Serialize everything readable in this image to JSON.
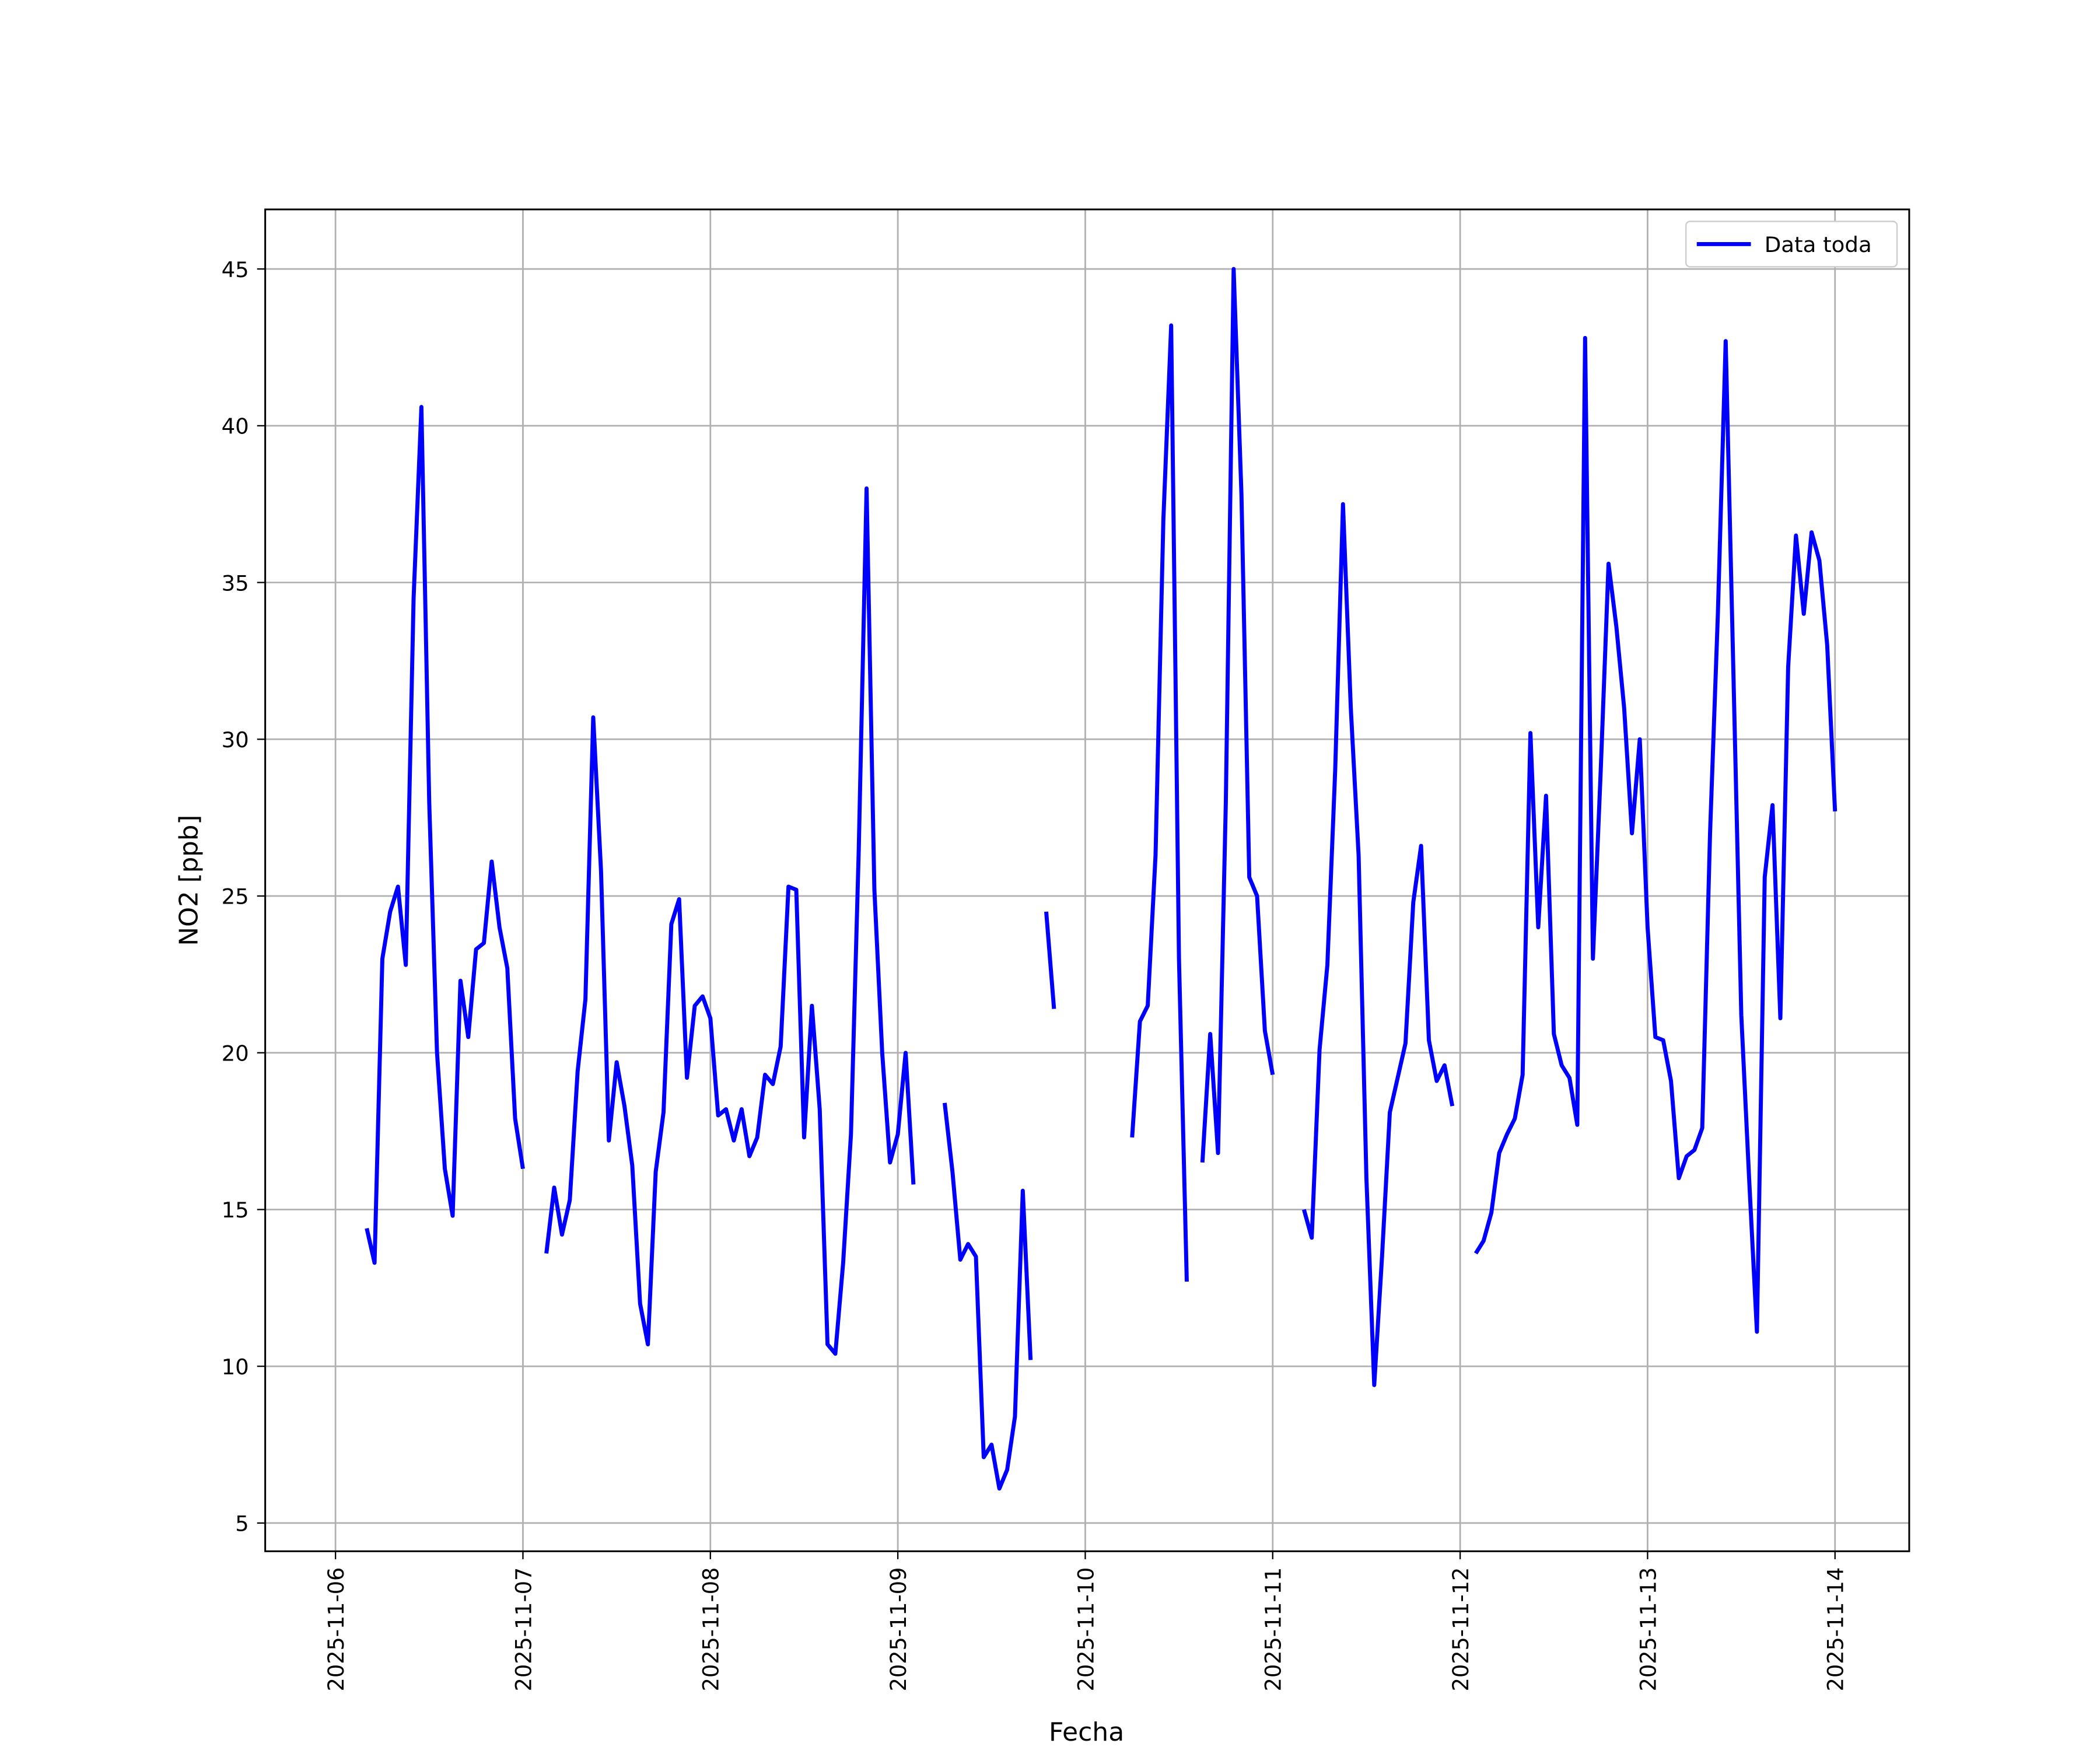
{
  "chart_data": {
    "type": "line",
    "xlabel": "Fecha",
    "ylabel": "NO2 [ppb]",
    "xlim": [
      "2025-11-05T15:00",
      "2025-11-14T09:30"
    ],
    "xticks": [
      "2025-11-06",
      "2025-11-07",
      "2025-11-08",
      "2025-11-09",
      "2025-11-10",
      "2025-11-11",
      "2025-11-12",
      "2025-11-13",
      "2025-11-14"
    ],
    "ylim": [
      4.1,
      46.9
    ],
    "yticks": [
      5,
      10,
      15,
      20,
      25,
      30,
      35,
      40,
      45
    ],
    "grid": true,
    "legend": "upper right",
    "x": [
      "2025-11-06T04:00",
      "2025-11-06T05:00",
      "2025-11-06T06:00",
      "2025-11-06T07:00",
      "2025-11-06T08:00",
      "2025-11-06T09:00",
      "2025-11-06T10:00",
      "2025-11-06T11:00",
      "2025-11-06T12:00",
      "2025-11-06T13:00",
      "2025-11-06T14:00",
      "2025-11-06T15:00",
      "2025-11-06T16:00",
      "2025-11-06T17:00",
      "2025-11-06T18:00",
      "2025-11-06T19:00",
      "2025-11-06T20:00",
      "2025-11-06T21:00",
      "2025-11-06T22:00",
      "2025-11-06T23:00",
      "2025-11-07T00:00",
      "2025-11-07T01:00",
      "2025-11-07T03:00",
      "2025-11-07T04:00",
      "2025-11-07T05:00",
      "2025-11-07T06:00",
      "2025-11-07T07:00",
      "2025-11-07T08:00",
      "2025-11-07T09:00",
      "2025-11-07T10:00",
      "2025-11-07T11:00",
      "2025-11-07T12:00",
      "2025-11-07T13:00",
      "2025-11-07T14:00",
      "2025-11-07T15:00",
      "2025-11-07T16:00",
      "2025-11-07T17:00",
      "2025-11-07T18:00",
      "2025-11-07T19:00",
      "2025-11-07T20:00",
      "2025-11-07T21:00",
      "2025-11-07T22:00",
      "2025-11-07T23:00",
      "2025-11-08T00:00",
      "2025-11-08T01:00",
      "2025-11-08T02:00",
      "2025-11-08T03:00",
      "2025-11-08T04:00",
      "2025-11-08T05:00",
      "2025-11-08T06:00",
      "2025-11-08T07:00",
      "2025-11-08T08:00",
      "2025-11-08T09:00",
      "2025-11-08T10:00",
      "2025-11-08T11:00",
      "2025-11-08T12:00",
      "2025-11-08T13:00",
      "2025-11-08T14:00",
      "2025-11-08T15:00",
      "2025-11-08T16:00",
      "2025-11-08T17:00",
      "2025-11-08T18:00",
      "2025-11-08T19:00",
      "2025-11-08T20:00",
      "2025-11-08T21:00",
      "2025-11-08T22:00",
      "2025-11-08T23:00",
      "2025-11-09T00:00",
      "2025-11-09T01:00",
      "2025-11-09T02:00",
      "2025-11-09T03:00",
      "2025-11-09T06:00",
      "2025-11-09T07:00",
      "2025-11-09T08:00",
      "2025-11-09T09:00",
      "2025-11-09T10:00",
      "2025-11-09T11:00",
      "2025-11-09T12:00",
      "2025-11-09T13:00",
      "2025-11-09T14:00",
      "2025-11-09T15:00",
      "2025-11-09T16:00",
      "2025-11-09T17:00",
      "2025-11-09T18:00",
      "2025-11-09T19:00",
      "2025-11-09T20:00",
      "2025-11-09T21:00",
      "2025-11-10T06:00",
      "2025-11-10T07:00",
      "2025-11-10T08:00",
      "2025-11-10T09:00",
      "2025-11-10T10:00",
      "2025-11-10T11:00",
      "2025-11-10T12:00",
      "2025-11-10T13:00",
      "2025-11-10T14:00",
      "2025-11-10T15:00",
      "2025-11-10T16:00",
      "2025-11-10T17:00",
      "2025-11-10T18:00",
      "2025-11-10T19:00",
      "2025-11-10T20:00",
      "2025-11-10T21:00",
      "2025-11-10T22:00",
      "2025-11-10T23:00",
      "2025-11-11T00:00",
      "2025-11-11T01:00",
      "2025-11-11T04:00",
      "2025-11-11T05:00",
      "2025-11-11T06:00",
      "2025-11-11T07:00",
      "2025-11-11T08:00",
      "2025-11-11T09:00",
      "2025-11-11T10:00",
      "2025-11-11T11:00",
      "2025-11-11T12:00",
      "2025-11-11T13:00",
      "2025-11-11T14:00",
      "2025-11-11T15:00",
      "2025-11-11T16:00",
      "2025-11-11T17:00",
      "2025-11-11T18:00",
      "2025-11-11T19:00",
      "2025-11-11T20:00",
      "2025-11-11T21:00",
      "2025-11-11T22:00",
      "2025-11-11T23:00",
      "2025-11-12T00:00",
      "2025-11-12T02:00",
      "2025-11-12T03:00",
      "2025-11-12T04:00",
      "2025-11-12T05:00",
      "2025-11-12T06:00",
      "2025-11-12T07:00",
      "2025-11-12T08:00",
      "2025-11-12T09:00",
      "2025-11-12T10:00",
      "2025-11-12T11:00",
      "2025-11-12T12:00",
      "2025-11-12T13:00",
      "2025-11-12T14:00",
      "2025-11-12T15:00",
      "2025-11-12T16:00",
      "2025-11-12T17:00",
      "2025-11-12T18:00",
      "2025-11-12T19:00",
      "2025-11-12T20:00",
      "2025-11-12T21:00",
      "2025-11-12T22:00",
      "2025-11-12T23:00",
      "2025-11-13T00:00",
      "2025-11-13T01:00",
      "2025-11-13T02:00",
      "2025-11-13T03:00",
      "2025-11-13T04:00",
      "2025-11-13T05:00",
      "2025-11-13T06:00",
      "2025-11-13T07:00",
      "2025-11-13T08:00",
      "2025-11-13T09:00",
      "2025-11-13T10:00",
      "2025-11-13T11:00",
      "2025-11-13T12:00",
      "2025-11-13T13:00",
      "2025-11-13T14:00",
      "2025-11-13T15:00",
      "2025-11-13T16:00",
      "2025-11-13T17:00",
      "2025-11-13T18:00",
      "2025-11-13T19:00",
      "2025-11-13T20:00",
      "2025-11-13T21:00",
      "2025-11-13T22:00",
      "2025-11-13T23:00",
      "2025-11-14T00:00"
    ],
    "series": [
      {
        "name": "Data toda",
        "color": "#0000ff",
        "values": [
          14.4,
          13.3,
          23.0,
          24.5,
          25.3,
          22.8,
          34.5,
          40.6,
          28,
          20,
          16.3,
          14.8,
          22.3,
          20.5,
          23.3,
          23.5,
          26.1,
          24,
          22.7,
          17.9,
          16.3,
          null,
          13.6,
          15.7,
          14.2,
          15.3,
          19.4,
          21.7,
          30.7,
          25.8,
          17.2,
          19.7,
          18.3,
          16.4,
          12.0,
          10.7,
          16.2,
          18.1,
          24.1,
          24.9,
          19.2,
          21.5,
          21.8,
          21.1,
          18.0,
          18.2,
          17.2,
          18.2,
          16.7,
          17.3,
          19.3,
          19.0,
          20.2,
          25.3,
          25.2,
          17.3,
          21.5,
          18.2,
          10.7,
          10.4,
          13.3,
          17.4,
          26.5,
          38.0,
          25.2,
          20.0,
          16.5,
          17.4,
          20.0,
          15.8,
          null,
          18.4,
          16.2,
          13.4,
          13.9,
          13.5,
          7.1,
          7.5,
          6.1,
          6.7,
          8.4,
          15.6,
          10.2,
          null,
          24.5,
          21.4,
          null,
          17.3,
          21.0,
          21.5,
          26.3,
          37.0,
          43.2,
          23.0,
          12.7,
          null,
          16.5,
          20.6,
          16.8,
          28,
          45.0,
          37.8,
          25.6,
          25.0,
          20.7,
          19.3,
          null,
          15.0,
          14.1,
          20.1,
          22.8,
          29,
          37.5,
          31.0,
          26.3,
          16,
          9.4,
          13.5,
          18.1,
          19.2,
          20.3,
          24.8,
          26.6,
          20.4,
          19.1,
          19.6,
          18.3,
          null,
          13.6,
          14.0,
          14.9,
          16.8,
          17.4,
          17.9,
          19.3,
          30.2,
          24.0,
          28.2,
          20.6,
          19.6,
          19.2,
          17.7,
          42.8,
          23.0,
          29,
          35.6,
          33.6,
          31,
          27,
          30.0,
          24,
          20.5,
          20.4,
          19.1,
          16.0,
          16.7,
          16.9,
          17.6,
          27,
          34,
          42.7,
          32,
          21.2,
          16,
          11.1,
          25.6,
          27.9,
          21.1,
          32.3,
          36.5,
          34.0,
          36.6,
          35.7,
          33,
          27.7
        ]
      }
    ]
  }
}
